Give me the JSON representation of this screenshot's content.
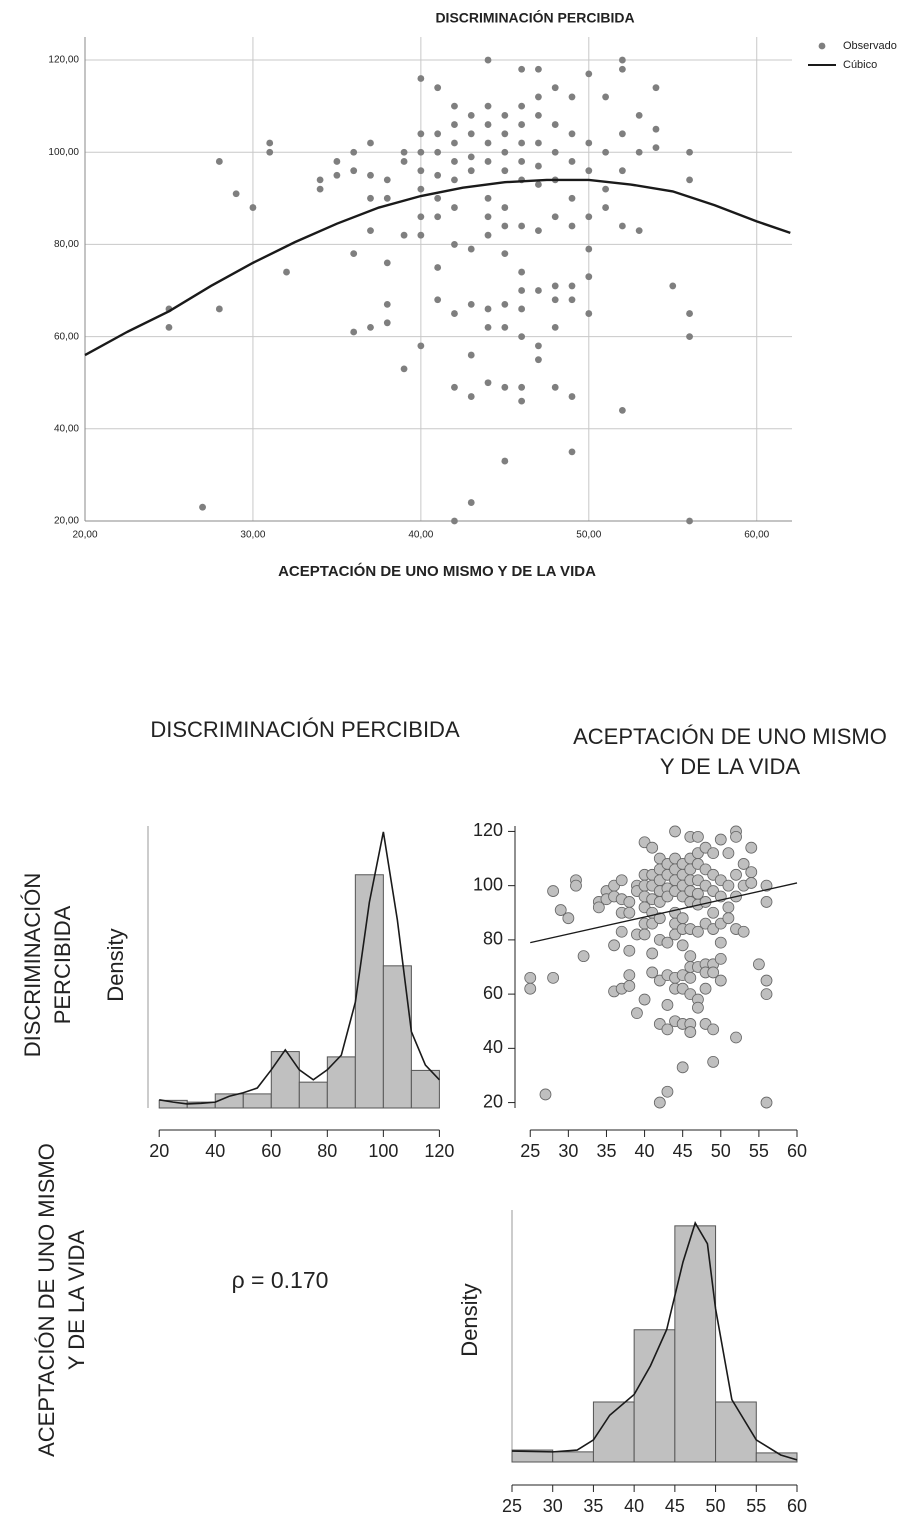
{
  "chart_data": [
    {
      "type": "scatter",
      "title": "DISCRIMINACIÓN PERCIBIDA",
      "x_label": "ACEPTACIÓN DE UNO MISMO Y DE LA VIDA",
      "xlim": [
        20,
        62.1
      ],
      "ylim": [
        20,
        125
      ],
      "xticks": [
        {
          "value": 20,
          "label": "20,00"
        },
        {
          "value": 30,
          "label": "30,00"
        },
        {
          "value": 40,
          "label": "40,00"
        },
        {
          "value": 50,
          "label": "50,00"
        },
        {
          "value": 60,
          "label": "60,00"
        }
      ],
      "yticks": [
        {
          "value": 20,
          "label": "20,00"
        },
        {
          "value": 40,
          "label": "40,00"
        },
        {
          "value": 60,
          "label": "60,00"
        },
        {
          "value": 80,
          "label": "80,00"
        },
        {
          "value": 100,
          "label": "100,00"
        },
        {
          "value": 120,
          "label": "120,00"
        }
      ],
      "grid": true,
      "legend": "top-right",
      "series": [
        {
          "name": "Observado",
          "color": "#7f7f7f",
          "x": [
            25,
            25,
            27,
            28,
            28,
            29,
            30,
            31,
            31,
            32,
            34,
            34,
            35,
            35,
            36,
            36,
            36,
            36,
            37,
            37,
            37,
            37,
            37,
            38,
            38,
            38,
            38,
            38,
            39,
            39,
            39,
            39,
            40,
            40,
            40,
            40,
            40,
            40,
            40,
            40,
            41,
            41,
            41,
            41,
            41,
            41,
            41,
            41,
            42,
            42,
            42,
            42,
            42,
            42,
            42,
            42,
            42,
            42,
            43,
            43,
            43,
            43,
            43,
            43,
            43,
            43,
            43,
            44,
            44,
            44,
            44,
            44,
            44,
            44,
            44,
            44,
            44,
            44,
            45,
            45,
            45,
            45,
            45,
            45,
            45,
            45,
            45,
            45,
            45,
            46,
            46,
            46,
            46,
            46,
            46,
            46,
            46,
            46,
            46,
            46,
            46,
            46,
            47,
            47,
            47,
            47,
            47,
            47,
            47,
            47,
            47,
            47,
            48,
            48,
            48,
            48,
            48,
            48,
            48,
            48,
            48,
            49,
            49,
            49,
            49,
            49,
            49,
            49,
            49,
            49,
            50,
            50,
            50,
            50,
            50,
            50,
            50,
            51,
            51,
            51,
            51,
            52,
            52,
            52,
            52,
            52,
            52,
            53,
            53,
            53,
            54,
            54,
            54,
            55,
            56,
            56,
            56,
            56,
            56
          ],
          "values": [
            66,
            62,
            23,
            98,
            66,
            91,
            88,
            102,
            100,
            74,
            94,
            92,
            98,
            95,
            100,
            96,
            78,
            61,
            102,
            95,
            90,
            83,
            62,
            94,
            90,
            76,
            67,
            63,
            100,
            98,
            82,
            53,
            116,
            104,
            100,
            96,
            92,
            86,
            82,
            58,
            114,
            104,
            100,
            95,
            90,
            86,
            75,
            68,
            110,
            106,
            102,
            98,
            94,
            88,
            80,
            65,
            49,
            20,
            108,
            104,
            99,
            96,
            79,
            67,
            56,
            47,
            24,
            120,
            110,
            106,
            102,
            98,
            90,
            86,
            82,
            66,
            62,
            50,
            108,
            104,
            100,
            96,
            88,
            84,
            78,
            67,
            62,
            49,
            33,
            118,
            110,
            106,
            102,
            98,
            94,
            84,
            74,
            70,
            66,
            60,
            49,
            46,
            118,
            112,
            108,
            102,
            97,
            93,
            83,
            70,
            58,
            55,
            114,
            106,
            100,
            94,
            86,
            71,
            68,
            62,
            49,
            112,
            104,
            98,
            90,
            84,
            71,
            68,
            47,
            35,
            117,
            102,
            96,
            86,
            79,
            73,
            65,
            112,
            100,
            92,
            88,
            120,
            118,
            104,
            96,
            84,
            44,
            108,
            100,
            83,
            114,
            105,
            101,
            71,
            100,
            94,
            65,
            60,
            20
          ]
        },
        {
          "name": "Cúbico",
          "type": "line",
          "color": "#1a1a1a",
          "x": [
            20,
            22.5,
            25,
            27.5,
            30,
            32.5,
            35,
            37.5,
            40,
            42.5,
            45,
            47.5,
            50,
            52.5,
            55,
            57.5,
            60,
            62
          ],
          "values": [
            56,
            61,
            65.5,
            71,
            76,
            80.5,
            84.5,
            88,
            90.5,
            92.3,
            93.5,
            94,
            94,
            93,
            91.5,
            88.5,
            85,
            82.5
          ]
        }
      ]
    },
    {
      "type": "pairs",
      "variables": [
        "DISCRIMINACIÓN PERCIBIDA",
        "ACEPTACIÓN DE UNO MISMO Y DE LA VIDA"
      ],
      "annotation": "ρ = 0.170",
      "panels": [
        {
          "type": "histogram",
          "y_label": "Density",
          "color": "#c0c0c0",
          "bins": [
            20,
            30,
            40,
            50,
            60,
            70,
            80,
            90,
            100,
            110,
            120
          ],
          "values": [
            0.0013,
            0.001,
            0.0024,
            0.0024,
            0.0096,
            0.0044,
            0.0087,
            0.0397,
            0.0242,
            0.0064
          ],
          "xlim": [
            16,
            122
          ],
          "ylim": [
            0,
            0.048
          ],
          "xticks": [
            20,
            40,
            60,
            80,
            100,
            120
          ],
          "density_curve": {
            "x": [
              20,
              25,
              30,
              35,
              40,
              45,
              50,
              55,
              60,
              65,
              70,
              75,
              80,
              85,
              90,
              95,
              100,
              105,
              110,
              115,
              120
            ],
            "values": [
              0.0014,
              0.001,
              0.0007,
              0.0008,
              0.001,
              0.002,
              0.0026,
              0.0034,
              0.0065,
              0.0099,
              0.0065,
              0.0048,
              0.0065,
              0.009,
              0.018,
              0.035,
              0.047,
              0.032,
              0.013,
              0.0073,
              0.0048
            ]
          }
        },
        {
          "type": "scatter",
          "xlim": [
            23,
            60
          ],
          "ylim": [
            18,
            122
          ],
          "xticks": [
            25,
            30,
            35,
            40,
            45,
            50,
            55,
            60
          ],
          "yticks": [
            20,
            40,
            60,
            80,
            100,
            120
          ],
          "series": [
            {
              "color": "#bfbfbf",
              "x": [
                25,
                25,
                27,
                28,
                28,
                29,
                30,
                31,
                31,
                32,
                34,
                34,
                35,
                35,
                36,
                36,
                36,
                36,
                37,
                37,
                37,
                37,
                37,
                38,
                38,
                38,
                38,
                38,
                39,
                39,
                39,
                39,
                40,
                40,
                40,
                40,
                40,
                40,
                40,
                40,
                41,
                41,
                41,
                41,
                41,
                41,
                41,
                41,
                42,
                42,
                42,
                42,
                42,
                42,
                42,
                42,
                42,
                42,
                43,
                43,
                43,
                43,
                43,
                43,
                43,
                43,
                43,
                44,
                44,
                44,
                44,
                44,
                44,
                44,
                44,
                44,
                44,
                44,
                45,
                45,
                45,
                45,
                45,
                45,
                45,
                45,
                45,
                45,
                45,
                46,
                46,
                46,
                46,
                46,
                46,
                46,
                46,
                46,
                46,
                46,
                46,
                46,
                47,
                47,
                47,
                47,
                47,
                47,
                47,
                47,
                47,
                47,
                48,
                48,
                48,
                48,
                48,
                48,
                48,
                48,
                48,
                49,
                49,
                49,
                49,
                49,
                49,
                49,
                49,
                49,
                50,
                50,
                50,
                50,
                50,
                50,
                50,
                51,
                51,
                51,
                51,
                52,
                52,
                52,
                52,
                52,
                52,
                53,
                53,
                53,
                54,
                54,
                54,
                55,
                56,
                56,
                56,
                56,
                56
              ],
              "values": [
                66,
                62,
                23,
                98,
                66,
                91,
                88,
                102,
                100,
                74,
                94,
                92,
                98,
                95,
                100,
                96,
                78,
                61,
                102,
                95,
                90,
                83,
                62,
                94,
                90,
                76,
                67,
                63,
                100,
                98,
                82,
                53,
                116,
                104,
                100,
                96,
                92,
                86,
                82,
                58,
                114,
                104,
                100,
                95,
                90,
                86,
                75,
                68,
                110,
                106,
                102,
                98,
                94,
                88,
                80,
                65,
                49,
                20,
                108,
                104,
                99,
                96,
                79,
                67,
                56,
                47,
                24,
                120,
                110,
                106,
                102,
                98,
                90,
                86,
                82,
                66,
                62,
                50,
                108,
                104,
                100,
                96,
                88,
                84,
                78,
                67,
                62,
                49,
                33,
                118,
                110,
                106,
                102,
                98,
                94,
                84,
                74,
                70,
                66,
                60,
                49,
                46,
                118,
                112,
                108,
                102,
                97,
                93,
                83,
                70,
                58,
                55,
                114,
                106,
                100,
                94,
                86,
                71,
                68,
                62,
                49,
                112,
                104,
                98,
                90,
                84,
                71,
                68,
                47,
                35,
                117,
                102,
                96,
                86,
                79,
                73,
                65,
                112,
                100,
                92,
                88,
                120,
                118,
                104,
                96,
                84,
                44,
                108,
                100,
                83,
                114,
                105,
                101,
                71,
                100,
                94,
                65,
                60,
                20
              ]
            },
            {
              "type": "line",
              "color": "#1a1a1a",
              "x": [
                25,
                60
              ],
              "values": [
                79,
                101
              ]
            }
          ]
        },
        {
          "type": "histogram",
          "y_label": "Density",
          "color": "#c0c0c0",
          "bins": [
            25,
            30,
            35,
            40,
            45,
            50,
            55,
            60
          ],
          "values": [
            0.0046,
            0.0039,
            0.0231,
            0.0509,
            0.0909,
            0.0231,
            0.0035
          ],
          "xlim": [
            25,
            60
          ],
          "ylim": [
            0,
            0.097
          ],
          "xticks": [
            25,
            30,
            35,
            40,
            45,
            50,
            55,
            60
          ],
          "density_curve": {
            "x": [
              25,
              30,
              33,
              35,
              37,
              40,
              42,
              44,
              46,
              47.5,
              49,
              50,
              52,
              55,
              58,
              60
            ],
            "values": [
              0.0042,
              0.0039,
              0.0046,
              0.0085,
              0.018,
              0.026,
              0.037,
              0.051,
              0.077,
              0.092,
              0.084,
              0.059,
              0.024,
              0.0085,
              0.0027,
              0.0008
            ]
          }
        }
      ]
    }
  ]
}
